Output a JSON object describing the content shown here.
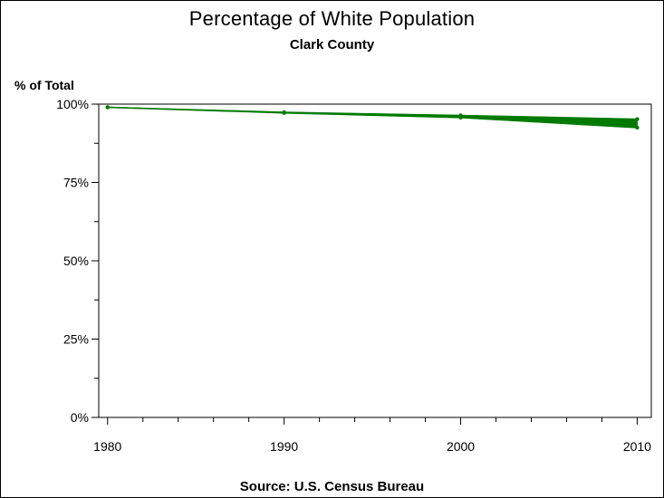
{
  "chart_data": {
    "type": "line",
    "title": "Percentage of White Population",
    "subtitle": "Clark County",
    "ylabel": "% of Total",
    "xlabel": "",
    "footnote": "Source: U.S. Census Bureau",
    "x": [
      1980,
      1990,
      2000,
      2010
    ],
    "xlim": [
      1979.5,
      2010.8
    ],
    "ylim": [
      0,
      100
    ],
    "x_ticks": [
      "1980",
      "1990",
      "2000",
      "2010"
    ],
    "y_ticks": [
      "0%",
      "25%",
      "50%",
      "75%",
      "100%"
    ],
    "series": [
      {
        "values": [
          99,
          97.2,
          95.7,
          92.5
        ]
      },
      {
        "values": [
          99,
          97.4,
          96.4,
          95.2
        ]
      }
    ],
    "band_between_series": true,
    "grid": false,
    "color": "#007a00"
  }
}
